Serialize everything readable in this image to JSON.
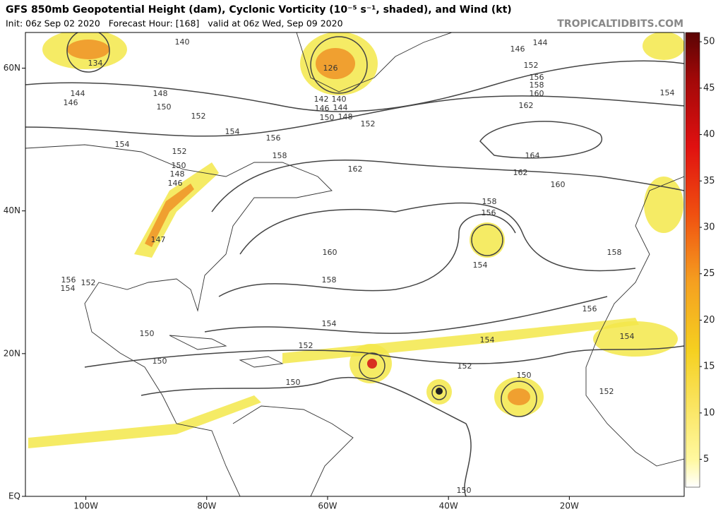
{
  "header": {
    "title": "GFS 850mb Geopotential Height (dam), Cyclonic Vorticity (10⁻⁵ s⁻¹, shaded), and Wind (kt)",
    "init": "Init: 06z Sep 02 2020   Forecast Hour: [168]   valid at 06z Wed, Sep 09 2020",
    "brand": "TROPICALTIDBITS.COM"
  },
  "map": {
    "lon_lim": [
      -110,
      -1
    ],
    "lat_lim": [
      0,
      65
    ],
    "lon_ticks": [
      {
        "value": -100,
        "label": "100W"
      },
      {
        "value": -80,
        "label": "80W"
      },
      {
        "value": -60,
        "label": "60W"
      },
      {
        "value": -40,
        "label": "40W"
      },
      {
        "value": -20,
        "label": "20W"
      }
    ],
    "lat_ticks": [
      {
        "value": 60,
        "label": "60N"
      },
      {
        "value": 40,
        "label": "40N"
      },
      {
        "value": 20,
        "label": "20N"
      },
      {
        "value": 0,
        "label": "EQ"
      }
    ],
    "contour_labels": [
      134,
      140,
      126,
      146,
      144,
      152,
      156,
      158,
      160,
      162,
      154,
      144,
      146,
      148,
      150,
      152,
      154,
      156,
      158,
      154,
      152,
      150,
      148,
      146,
      147,
      142,
      140,
      146,
      144,
      150,
      148,
      152,
      162,
      164,
      162,
      160,
      158,
      156,
      154,
      158,
      160,
      158,
      154,
      156,
      154,
      152,
      152,
      150,
      154,
      152,
      150,
      150,
      150,
      156,
      154,
      152,
      150
    ]
  },
  "colorbar": {
    "lim": [
      2,
      51
    ],
    "ticks": [
      5,
      10,
      15,
      20,
      25,
      30,
      35,
      40,
      45,
      50
    ]
  }
}
